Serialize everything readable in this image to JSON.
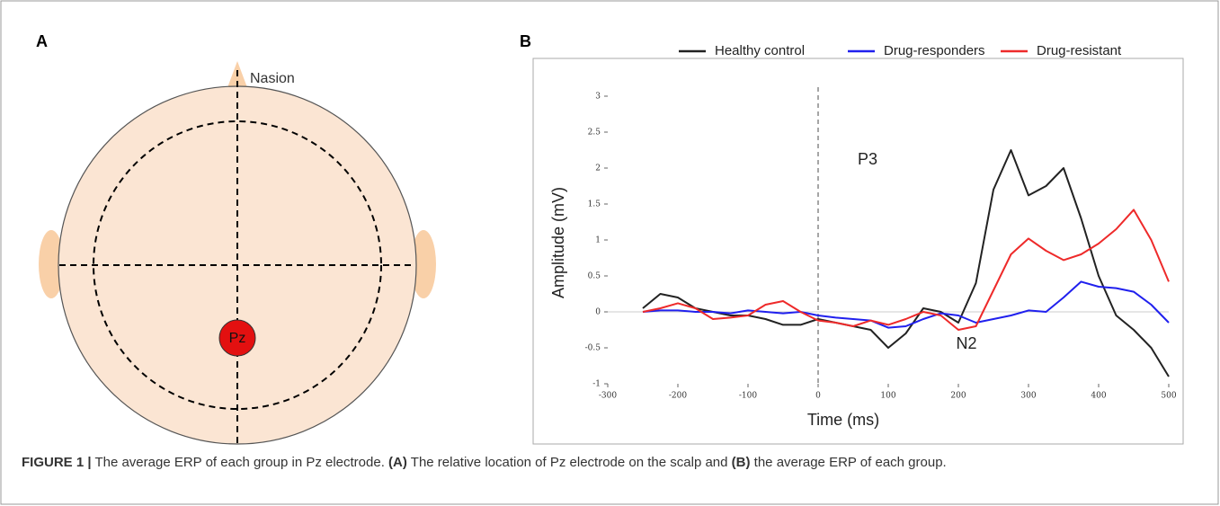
{
  "panel_a": {
    "label": "A",
    "nasion": "Nasion",
    "electrode": "Pz"
  },
  "panel_b": {
    "label": "B"
  },
  "chart_data": {
    "type": "line",
    "xlabel": "Time (ms)",
    "ylabel": "Amplitude (mV)",
    "x": [
      -250,
      -225,
      -200,
      -175,
      -150,
      -125,
      -100,
      -75,
      -50,
      -25,
      0,
      25,
      50,
      75,
      100,
      125,
      150,
      175,
      200,
      225,
      250,
      275,
      300,
      325,
      350,
      375,
      400,
      425,
      450,
      475,
      500
    ],
    "series": [
      {
        "name": "Healthy control",
        "color": "#222222",
        "values": [
          0.05,
          0.25,
          0.2,
          0.05,
          0.0,
          -0.05,
          -0.05,
          -0.1,
          -0.18,
          -0.18,
          -0.1,
          -0.15,
          -0.2,
          -0.25,
          -0.5,
          -0.3,
          0.05,
          0.0,
          -0.15,
          0.4,
          1.7,
          2.25,
          1.62,
          1.75,
          2.0,
          1.3,
          0.5,
          -0.05,
          -0.25,
          -0.5,
          -0.9
        ]
      },
      {
        "name": "Drug-responders",
        "color": "#2020ee",
        "values": [
          0.0,
          0.02,
          0.02,
          0.0,
          0.0,
          -0.02,
          0.02,
          0.0,
          -0.02,
          0.0,
          -0.05,
          -0.08,
          -0.1,
          -0.12,
          -0.22,
          -0.2,
          -0.1,
          -0.02,
          -0.05,
          -0.15,
          -0.1,
          -0.05,
          0.02,
          0.0,
          0.2,
          0.42,
          0.35,
          0.33,
          0.28,
          0.1,
          -0.15
        ]
      },
      {
        "name": "Drug-resistant",
        "color": "#ee2a2a",
        "values": [
          0.0,
          0.05,
          0.12,
          0.05,
          -0.1,
          -0.08,
          -0.05,
          0.1,
          0.15,
          0.0,
          -0.12,
          -0.15,
          -0.2,
          -0.12,
          -0.18,
          -0.1,
          0.0,
          -0.05,
          -0.25,
          -0.2,
          0.3,
          0.8,
          1.02,
          0.85,
          0.72,
          0.8,
          0.95,
          1.15,
          1.42,
          1.0,
          0.42
        ]
      }
    ],
    "xlim": [
      -300,
      500
    ],
    "xticks": [
      -300,
      -200,
      -100,
      0,
      100,
      200,
      300,
      400,
      500
    ],
    "ylim": [
      -1,
      3
    ],
    "yticks": [
      -1,
      -0.5,
      0,
      0.5,
      1,
      1.5,
      2,
      2.5,
      3
    ],
    "vline": 0,
    "annotations": [
      "P3",
      "N2"
    ],
    "legend": "top"
  },
  "caption": [
    "FIGURE 1 |",
    "The average ERP of each group in Pz electrode.",
    "(A)",
    "The relative location of Pz electrode on the scalp and",
    "(B)",
    "the average ERP of each group."
  ]
}
